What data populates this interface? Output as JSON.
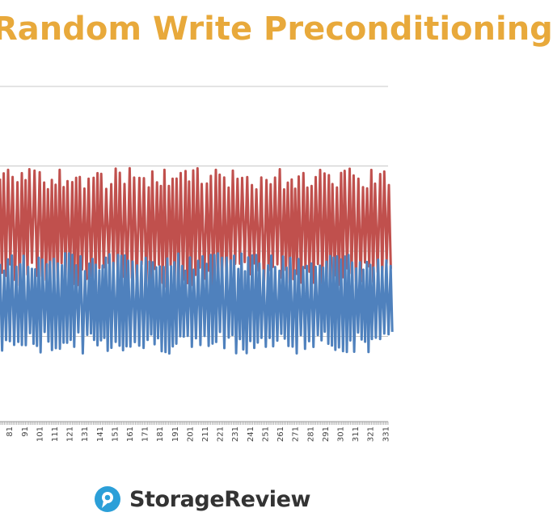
{
  "chart_data": {
    "type": "line",
    "title": "Random Write Preconditioning",
    "xlabel": "",
    "ylabel": "",
    "x_tick_labels": [
      "81",
      "91",
      "101",
      "111",
      "121",
      "131",
      "141",
      "151",
      "161",
      "171",
      "181",
      "191",
      "201",
      "211",
      "221",
      "231",
      "241",
      "251",
      "261",
      "271",
      "281",
      "291",
      "301",
      "311",
      "321",
      "331"
    ],
    "x_visible_range": [
      75,
      333
    ],
    "grid": "horizontal",
    "series": [
      {
        "color": "#c0504d",
        "min": 115,
        "max": 395,
        "period": 2.9,
        "values_note_shown": false
      },
      {
        "color": "#4f81bd",
        "min": -40,
        "max": 195,
        "period": 2.6
      }
    ],
    "gridline_values": [
      200,
      0
    ]
  },
  "colors": {
    "title": "#e8a93b",
    "grid": "#c8c8c8",
    "axis": "#9a9a9a",
    "brand_text": "#333333",
    "brand_icon": "#2b9fd8"
  },
  "brand": {
    "name": "StorageReview",
    "logo_icon": "storagereview-logo-icon"
  }
}
